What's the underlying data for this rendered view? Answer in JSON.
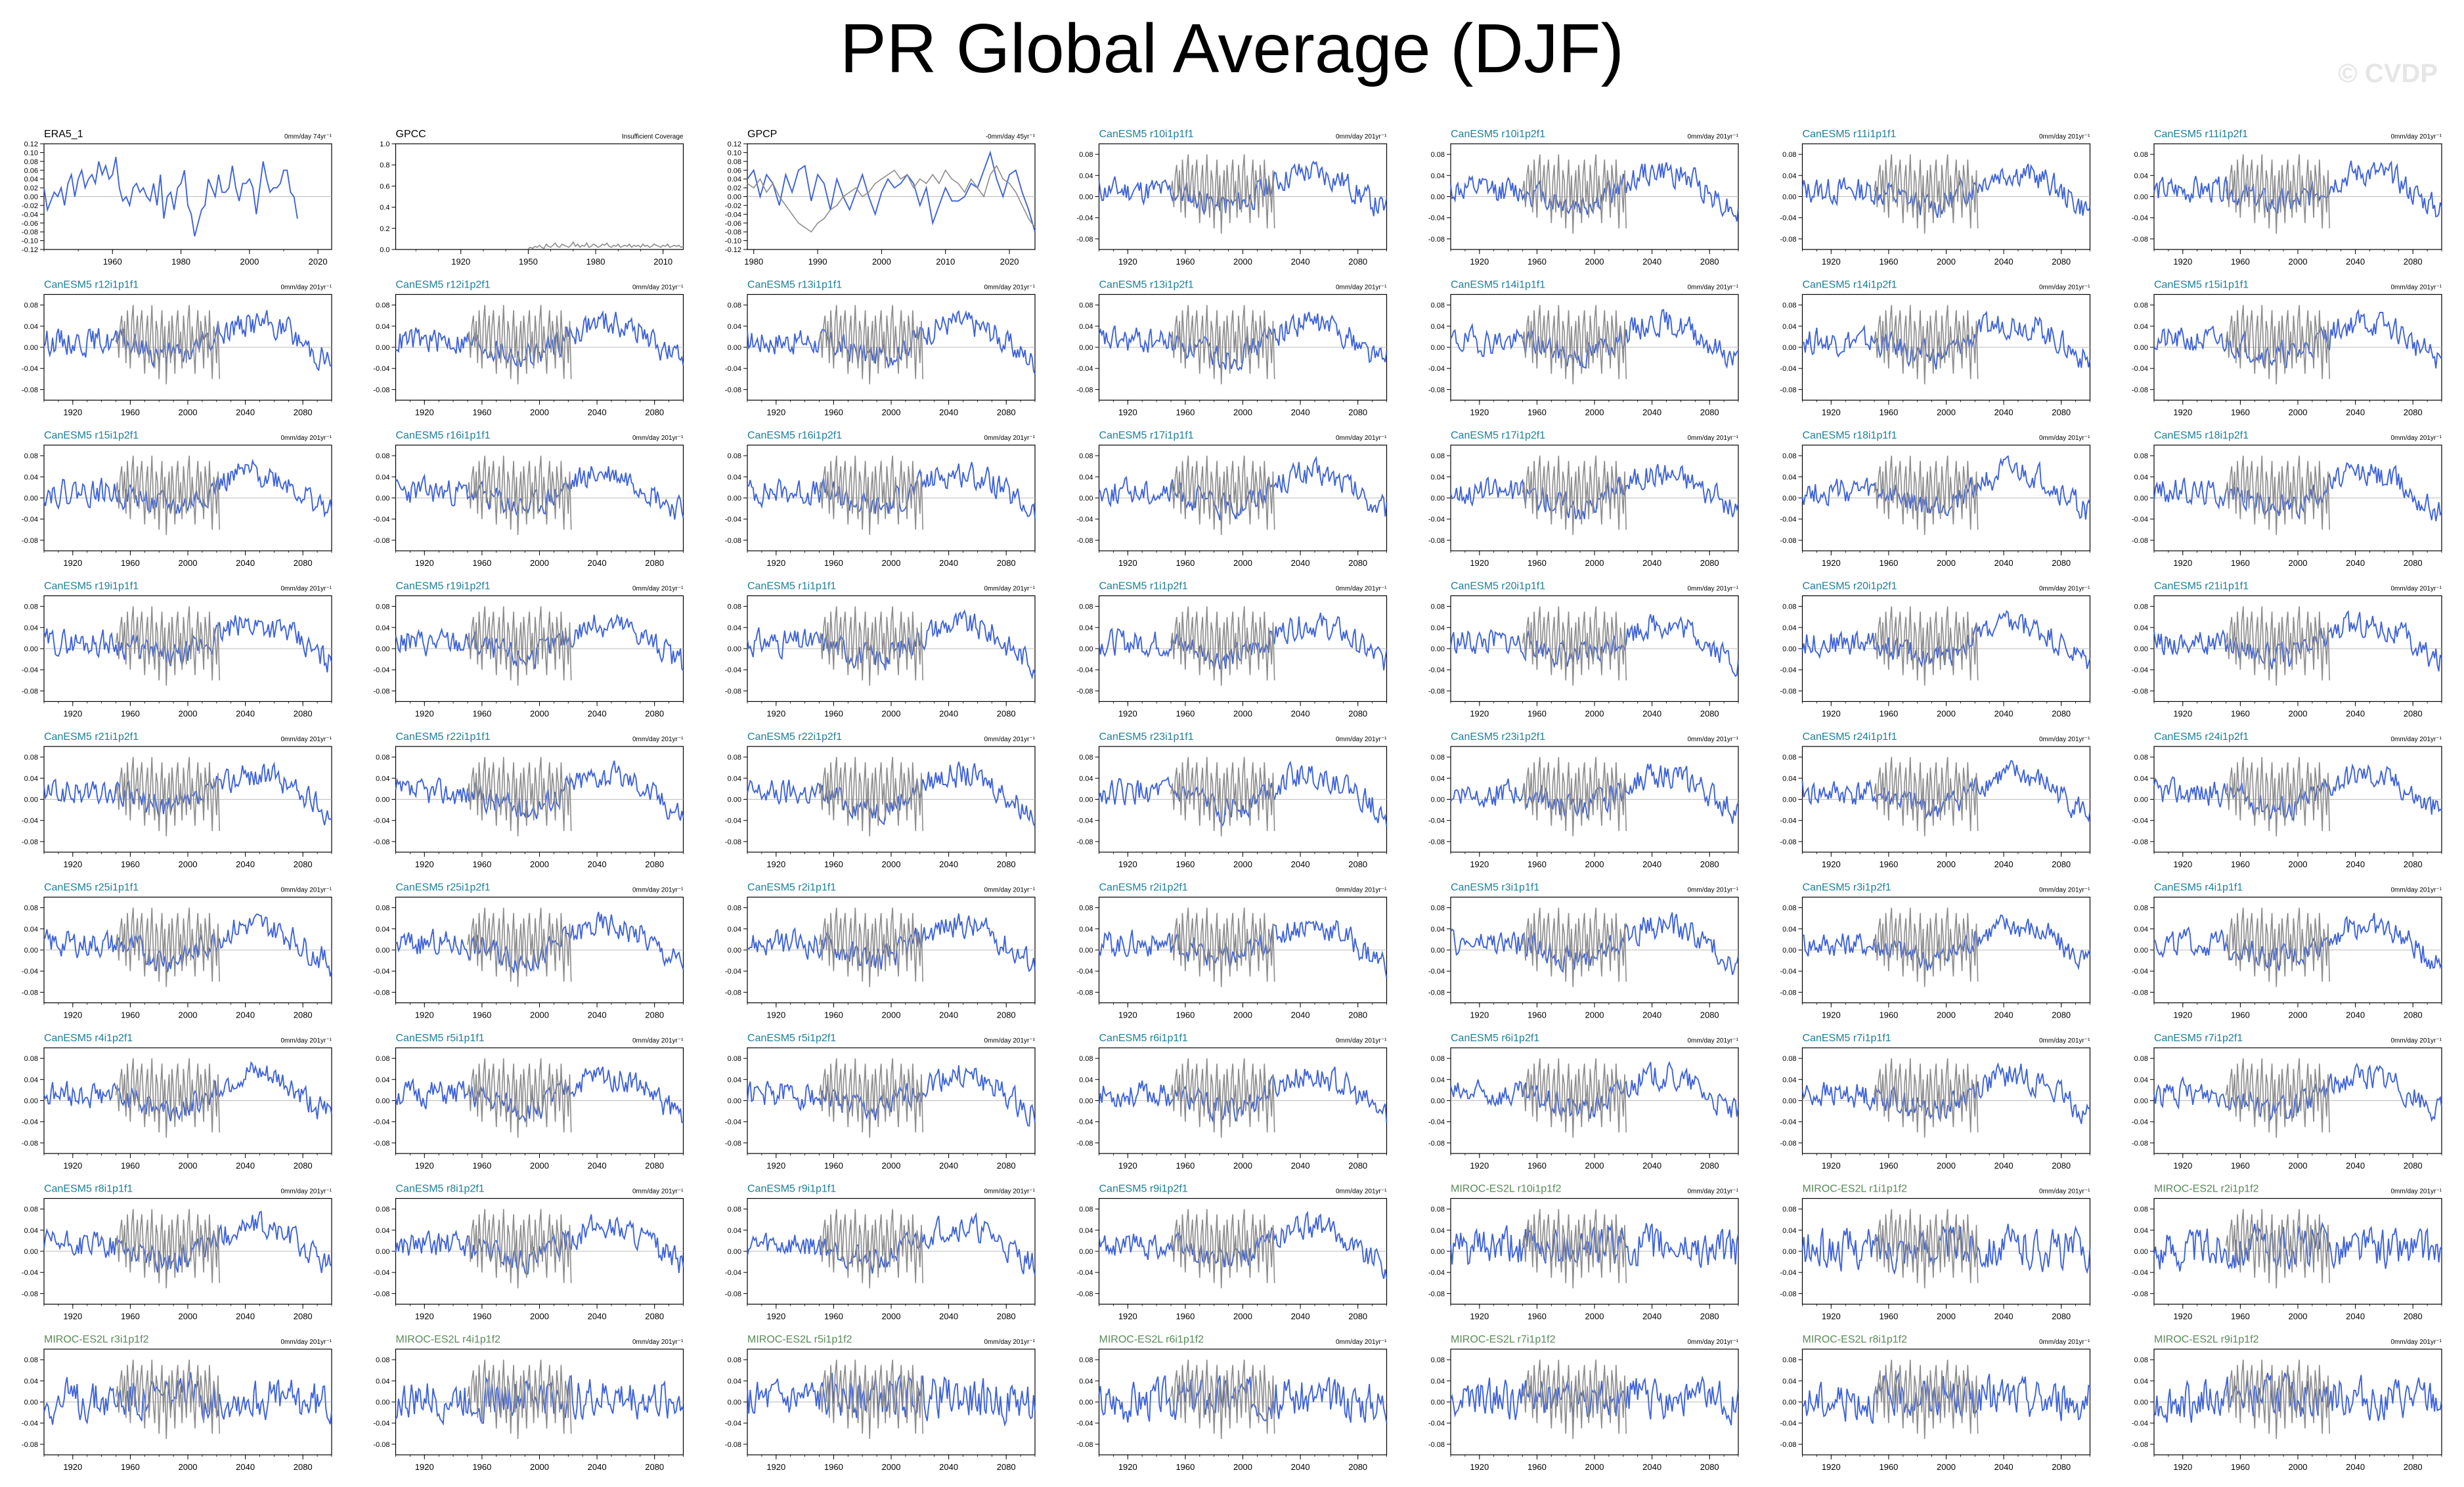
{
  "title": "PR Global Average (DJF)",
  "watermark": "© CVDP",
  "colors": {
    "observation_line": "#3f63d8",
    "reference_line": "#8c8c8c",
    "canesm_title": "#1e7f9a",
    "miroc_title": "#5a8a5a",
    "obs_title": "#000000",
    "zero_line": "#bbbbbb"
  },
  "chart_data": [
    {
      "type": "line",
      "title": "ERA5_1",
      "title_color": "obs",
      "trend": "0mm/day 74yr⁻¹",
      "x": {
        "min": 1940,
        "max": 2024,
        "ticks": [
          1960,
          1980,
          2000,
          2020
        ]
      },
      "ylim": [
        -0.12,
        0.12
      ],
      "yticks": [
        "0.12",
        "0.10",
        "0.08",
        "0.06",
        "0.04",
        "0.02",
        "0.00",
        "-0.02",
        "-0.04",
        "-0.06",
        "-0.08",
        "-0.10",
        "-0.12"
      ],
      "series": [
        {
          "style": "obs",
          "start": 1940,
          "values": [
            0.02,
            -0.03,
            -0.01,
            0.01,
            0.0,
            0.02,
            -0.02,
            0.03,
            0.05,
            0.0,
            0.04,
            0.06,
            0.02,
            0.04,
            0.05,
            0.03,
            0.08,
            0.05,
            0.07,
            0.04,
            0.05,
            0.09,
            0.02,
            -0.01,
            0.0,
            -0.02,
            0.02,
            0.03,
            0.01,
            0.02,
            0.0,
            -0.01,
            0.03,
            -0.02,
            0.05,
            -0.05,
            0.0,
            0.01,
            -0.03,
            0.02,
            0.03,
            0.06,
            -0.02,
            -0.04,
            -0.09,
            -0.06,
            -0.03,
            -0.02,
            0.04,
            0.02,
            0.0,
            0.05,
            0.01,
            0.01,
            0.02,
            0.07,
            0.02,
            -0.01,
            0.03,
            0.03,
            0.04,
            0.02,
            -0.04,
            0.02,
            0.08,
            0.04,
            0.01,
            0.02,
            0.02,
            0.03,
            0.06,
            0.06,
            0.01,
            0.0,
            -0.05
          ]
        }
      ]
    },
    {
      "type": "line",
      "title": "GPCC",
      "title_color": "obs",
      "trend": "Insufficient Coverage",
      "x": {
        "min": 1891,
        "max": 2019,
        "ticks": [
          1920,
          1950,
          1980,
          2010
        ]
      },
      "ylim": [
        0.0,
        1.0
      ],
      "yticks": [
        "1.0",
        "0.8",
        "0.6",
        "0.4",
        "0.2",
        "0.0"
      ],
      "series": [
        {
          "style": "ref",
          "start": 1950,
          "values": [
            0.01,
            0.02,
            0.01,
            0.03,
            0.02,
            0.04,
            0.02,
            0.01,
            0.05,
            0.03,
            0.02,
            0.04,
            0.06,
            0.03,
            0.02,
            0.05,
            0.04,
            0.03,
            0.02,
            0.04,
            0.07,
            0.03,
            0.05,
            0.02,
            0.04,
            0.03,
            0.06,
            0.02,
            0.03,
            0.05,
            0.04,
            0.02,
            0.03,
            0.05,
            0.04,
            0.06,
            0.03,
            0.02,
            0.04,
            0.03,
            0.05,
            0.02,
            0.03,
            0.04,
            0.03,
            0.05,
            0.02,
            0.04,
            0.03,
            0.04,
            0.02,
            0.05,
            0.03,
            0.04,
            0.02,
            0.03,
            0.05,
            0.04,
            0.03,
            0.02,
            0.04,
            0.03,
            0.05,
            0.02,
            0.03,
            0.04,
            0.03,
            0.04,
            0.02,
            0.03
          ]
        }
      ]
    },
    {
      "type": "line",
      "title": "GPCP",
      "title_color": "obs",
      "trend": "-0mm/day 45yr⁻¹",
      "x": {
        "min": 1979,
        "max": 2024,
        "ticks": [
          1980,
          1990,
          2000,
          2010,
          2020
        ]
      },
      "ylim": [
        -0.12,
        0.12
      ],
      "yticks": [
        "0.12",
        "0.10",
        "0.08",
        "0.06",
        "0.04",
        "0.02",
        "0.00",
        "-0.02",
        "-0.04",
        "-0.06",
        "-0.08",
        "-0.10",
        "-0.12"
      ],
      "series": [
        {
          "style": "obs",
          "start": 1979,
          "values": [
            0.04,
            0.06,
            0.0,
            0.05,
            0.03,
            -0.02,
            0.05,
            0.01,
            0.06,
            0.07,
            -0.01,
            0.05,
            0.03,
            -0.03,
            0.04,
            0.0,
            -0.03,
            0.01,
            0.05,
            0.0,
            -0.04,
            0.01,
            0.04,
            0.02,
            0.03,
            0.05,
            0.03,
            -0.02,
            0.02,
            -0.06,
            -0.02,
            0.02,
            -0.01,
            -0.01,
            0.0,
            0.03,
            0.02,
            0.06,
            0.1,
            0.04,
            0.0,
            0.05,
            0.06,
            0.01,
            -0.03,
            -0.08
          ]
        },
        {
          "style": "ref",
          "start": 1979,
          "values": [
            0.03,
            0.02,
            0.04,
            0.01,
            0.03,
            0.0,
            -0.02,
            -0.04,
            -0.06,
            -0.07,
            -0.08,
            -0.06,
            -0.05,
            -0.03,
            -0.02,
            0.0,
            0.01,
            0.02,
            0.0,
            0.01,
            0.03,
            0.04,
            0.05,
            0.06,
            0.04,
            0.05,
            0.02,
            0.04,
            0.03,
            0.05,
            0.03,
            0.06,
            0.04,
            0.03,
            0.01,
            0.04,
            0.02,
            0.0,
            0.05,
            0.07,
            0.04,
            0.03,
            0.01,
            -0.02,
            -0.05,
            -0.07
          ]
        }
      ]
    },
    {
      "type": "line",
      "title": "CanESM5 r10i1p1f1",
      "title_color": "canesm",
      "trend": "0mm/day 201yr⁻¹",
      "seed": 11
    },
    {
      "type": "line",
      "title": "CanESM5 r10i1p2f1",
      "title_color": "canesm",
      "trend": "0mm/day 201yr⁻¹",
      "seed": 12
    },
    {
      "type": "line",
      "title": "CanESM5 r11i1p1f1",
      "title_color": "canesm",
      "trend": "0mm/day 201yr⁻¹",
      "seed": 13
    },
    {
      "type": "line",
      "title": "CanESM5 r11i1p2f1",
      "title_color": "canesm",
      "trend": "0mm/day 201yr⁻¹",
      "seed": 14
    },
    {
      "type": "line",
      "title": "CanESM5 r12i1p1f1",
      "title_color": "canesm",
      "trend": "0mm/day 201yr⁻¹",
      "seed": 15
    },
    {
      "type": "line",
      "title": "CanESM5 r12i1p2f1",
      "title_color": "canesm",
      "trend": "0mm/day 201yr⁻¹",
      "seed": 16
    },
    {
      "type": "line",
      "title": "CanESM5 r13i1p1f1",
      "title_color": "canesm",
      "trend": "0mm/day 201yr⁻¹",
      "seed": 17
    },
    {
      "type": "line",
      "title": "CanESM5 r13i1p2f1",
      "title_color": "canesm",
      "trend": "0mm/day 201yr⁻¹",
      "seed": 18
    },
    {
      "type": "line",
      "title": "CanESM5 r14i1p1f1",
      "title_color": "canesm",
      "trend": "0mm/day 201yr⁻¹",
      "seed": 19
    },
    {
      "type": "line",
      "title": "CanESM5 r14i1p2f1",
      "title_color": "canesm",
      "trend": "0mm/day 201yr⁻¹",
      "seed": 20
    },
    {
      "type": "line",
      "title": "CanESM5 r15i1p1f1",
      "title_color": "canesm",
      "trend": "0mm/day 201yr⁻¹",
      "seed": 21
    },
    {
      "type": "line",
      "title": "CanESM5 r15i1p2f1",
      "title_color": "canesm",
      "trend": "0mm/day 201yr⁻¹",
      "seed": 22
    },
    {
      "type": "line",
      "title": "CanESM5 r16i1p1f1",
      "title_color": "canesm",
      "trend": "0mm/day 201yr⁻¹",
      "seed": 23
    },
    {
      "type": "line",
      "title": "CanESM5 r16i1p2f1",
      "title_color": "canesm",
      "trend": "0mm/day 201yr⁻¹",
      "seed": 24
    },
    {
      "type": "line",
      "title": "CanESM5 r17i1p1f1",
      "title_color": "canesm",
      "trend": "0mm/day 201yr⁻¹",
      "seed": 25
    },
    {
      "type": "line",
      "title": "CanESM5 r17i1p2f1",
      "title_color": "canesm",
      "trend": "0mm/day 201yr⁻¹",
      "seed": 26
    },
    {
      "type": "line",
      "title": "CanESM5 r18i1p1f1",
      "title_color": "canesm",
      "trend": "0mm/day 201yr⁻¹",
      "seed": 27
    },
    {
      "type": "line",
      "title": "CanESM5 r18i1p2f1",
      "title_color": "canesm",
      "trend": "0mm/day 201yr⁻¹",
      "seed": 28
    },
    {
      "type": "line",
      "title": "CanESM5 r19i1p1f1",
      "title_color": "canesm",
      "trend": "0mm/day 201yr⁻¹",
      "seed": 29
    },
    {
      "type": "line",
      "title": "CanESM5 r19i1p2f1",
      "title_color": "canesm",
      "trend": "0mm/day 201yr⁻¹",
      "seed": 30
    },
    {
      "type": "line",
      "title": "CanESM5 r1i1p1f1",
      "title_color": "canesm",
      "trend": "0mm/day 201yr⁻¹",
      "seed": 31
    },
    {
      "type": "line",
      "title": "CanESM5 r1i1p2f1",
      "title_color": "canesm",
      "trend": "0mm/day 201yr⁻¹",
      "seed": 32
    },
    {
      "type": "line",
      "title": "CanESM5 r20i1p1f1",
      "title_color": "canesm",
      "trend": "0mm/day 201yr⁻¹",
      "seed": 33
    },
    {
      "type": "line",
      "title": "CanESM5 r20i1p2f1",
      "title_color": "canesm",
      "trend": "0mm/day 201yr⁻¹",
      "seed": 34
    },
    {
      "type": "line",
      "title": "CanESM5 r21i1p1f1",
      "title_color": "canesm",
      "trend": "0mm/day 201yr⁻¹",
      "seed": 35
    },
    {
      "type": "line",
      "title": "CanESM5 r21i1p2f1",
      "title_color": "canesm",
      "trend": "0mm/day 201yr⁻¹",
      "seed": 36
    },
    {
      "type": "line",
      "title": "CanESM5 r22i1p1f1",
      "title_color": "canesm",
      "trend": "0mm/day 201yr⁻¹",
      "seed": 37
    },
    {
      "type": "line",
      "title": "CanESM5 r22i1p2f1",
      "title_color": "canesm",
      "trend": "0mm/day 201yr⁻¹",
      "seed": 38
    },
    {
      "type": "line",
      "title": "CanESM5 r23i1p1f1",
      "title_color": "canesm",
      "trend": "0mm/day 201yr⁻¹",
      "seed": 39
    },
    {
      "type": "line",
      "title": "CanESM5 r23i1p2f1",
      "title_color": "canesm",
      "trend": "0mm/day 201yr⁻¹",
      "seed": 40
    },
    {
      "type": "line",
      "title": "CanESM5 r24i1p1f1",
      "title_color": "canesm",
      "trend": "0mm/day 201yr⁻¹",
      "seed": 41
    },
    {
      "type": "line",
      "title": "CanESM5 r24i1p2f1",
      "title_color": "canesm",
      "trend": "0mm/day 201yr⁻¹",
      "seed": 42
    },
    {
      "type": "line",
      "title": "CanESM5 r25i1p1f1",
      "title_color": "canesm",
      "trend": "0mm/day 201yr⁻¹",
      "seed": 43
    },
    {
      "type": "line",
      "title": "CanESM5 r25i1p2f1",
      "title_color": "canesm",
      "trend": "0mm/day 201yr⁻¹",
      "seed": 44
    },
    {
      "type": "line",
      "title": "CanESM5 r2i1p1f1",
      "title_color": "canesm",
      "trend": "0mm/day 201yr⁻¹",
      "seed": 45
    },
    {
      "type": "line",
      "title": "CanESM5 r2i1p2f1",
      "title_color": "canesm",
      "trend": "0mm/day 201yr⁻¹",
      "seed": 46
    },
    {
      "type": "line",
      "title": "CanESM5 r3i1p1f1",
      "title_color": "canesm",
      "trend": "0mm/day 201yr⁻¹",
      "seed": 47
    },
    {
      "type": "line",
      "title": "CanESM5 r3i1p2f1",
      "title_color": "canesm",
      "trend": "0mm/day 201yr⁻¹",
      "seed": 48
    },
    {
      "type": "line",
      "title": "CanESM5 r4i1p1f1",
      "title_color": "canesm",
      "trend": "0mm/day 201yr⁻¹",
      "seed": 49
    },
    {
      "type": "line",
      "title": "CanESM5 r4i1p2f1",
      "title_color": "canesm",
      "trend": "0mm/day 201yr⁻¹",
      "seed": 50
    },
    {
      "type": "line",
      "title": "CanESM5 r5i1p1f1",
      "title_color": "canesm",
      "trend": "0mm/day 201yr⁻¹",
      "seed": 51
    },
    {
      "type": "line",
      "title": "CanESM5 r5i1p2f1",
      "title_color": "canesm",
      "trend": "0mm/day 201yr⁻¹",
      "seed": 52
    },
    {
      "type": "line",
      "title": "CanESM5 r6i1p1f1",
      "title_color": "canesm",
      "trend": "0mm/day 201yr⁻¹",
      "seed": 53
    },
    {
      "type": "line",
      "title": "CanESM5 r6i1p2f1",
      "title_color": "canesm",
      "trend": "0mm/day 201yr⁻¹",
      "seed": 54
    },
    {
      "type": "line",
      "title": "CanESM5 r7i1p1f1",
      "title_color": "canesm",
      "trend": "0mm/day 201yr⁻¹",
      "seed": 55
    },
    {
      "type": "line",
      "title": "CanESM5 r7i1p2f1",
      "title_color": "canesm",
      "trend": "0mm/day 201yr⁻¹",
      "seed": 56
    },
    {
      "type": "line",
      "title": "CanESM5 r8i1p1f1",
      "title_color": "canesm",
      "trend": "0mm/day 201yr⁻¹",
      "seed": 57
    },
    {
      "type": "line",
      "title": "CanESM5 r8i1p2f1",
      "title_color": "canesm",
      "trend": "0mm/day 201yr⁻¹",
      "seed": 58
    },
    {
      "type": "line",
      "title": "CanESM5 r9i1p1f1",
      "title_color": "canesm",
      "trend": "0mm/day 201yr⁻¹",
      "seed": 59
    },
    {
      "type": "line",
      "title": "CanESM5 r9i1p2f1",
      "title_color": "canesm",
      "trend": "0mm/day 201yr⁻¹",
      "seed": 60
    },
    {
      "type": "line",
      "title": "MIROC-ES2L r10i1p1f2",
      "title_color": "miroc",
      "trend": "0mm/day 201yr⁻¹",
      "seed": 61,
      "model": "miroc"
    },
    {
      "type": "line",
      "title": "MIROC-ES2L r1i1p1f2",
      "title_color": "miroc",
      "trend": "0mm/day 201yr⁻¹",
      "seed": 62,
      "model": "miroc"
    },
    {
      "type": "line",
      "title": "MIROC-ES2L r2i1p1f2",
      "title_color": "miroc",
      "trend": "0mm/day 201yr⁻¹",
      "seed": 63,
      "model": "miroc"
    },
    {
      "type": "line",
      "title": "MIROC-ES2L r3i1p1f2",
      "title_color": "miroc",
      "trend": "0mm/day 201yr⁻¹",
      "seed": 64,
      "model": "miroc"
    },
    {
      "type": "line",
      "title": "MIROC-ES2L r4i1p1f2",
      "title_color": "miroc",
      "trend": "0mm/day 201yr⁻¹",
      "seed": 65,
      "model": "miroc"
    },
    {
      "type": "line",
      "title": "MIROC-ES2L r5i1p1f2",
      "title_color": "miroc",
      "trend": "0mm/day 201yr⁻¹",
      "seed": 66,
      "model": "miroc"
    },
    {
      "type": "line",
      "title": "MIROC-ES2L r6i1p1f2",
      "title_color": "miroc",
      "trend": "0mm/day 201yr⁻¹",
      "seed": 67,
      "model": "miroc"
    },
    {
      "type": "line",
      "title": "MIROC-ES2L r7i1p1f2",
      "title_color": "miroc",
      "trend": "0mm/day 201yr⁻¹",
      "seed": 68,
      "model": "miroc"
    },
    {
      "type": "line",
      "title": "MIROC-ES2L r8i1p1f2",
      "title_color": "miroc",
      "trend": "0mm/day 201yr⁻¹",
      "seed": 69,
      "model": "miroc"
    },
    {
      "type": "line",
      "title": "MIROC-ES2L r9i1p1f2",
      "title_color": "miroc",
      "trend": "0mm/day 201yr⁻¹",
      "seed": 70,
      "model": "miroc"
    }
  ],
  "model_panel_defaults": {
    "x": {
      "min": 1900,
      "max": 2100,
      "ticks": [
        1920,
        1960,
        2000,
        2040,
        2080
      ]
    },
    "ylim": [
      -0.1,
      0.1
    ],
    "yticks": [
      "0.08",
      "0.04",
      "0.00",
      "-0.04",
      "-0.08"
    ],
    "ref_start": 1950,
    "ref_values": [
      0.01,
      0.03,
      -0.02,
      0.04,
      0.06,
      0.0,
      0.05,
      -0.03,
      0.07,
      0.02,
      -0.04,
      0.05,
      0.08,
      -0.01,
      0.03,
      0.06,
      -0.02,
      0.04,
      0.07,
      0.01,
      -0.05,
      0.03,
      0.06,
      -0.03,
      0.02,
      0.08,
      0.0,
      -0.04,
      0.05,
      0.03,
      -0.06,
      0.02,
      0.07,
      -0.02,
      0.04,
      -0.07,
      0.01,
      0.05,
      -0.03,
      0.06,
      0.02,
      -0.05,
      0.04,
      0.07,
      -0.01,
      0.03,
      -0.04,
      0.06,
      0.02,
      -0.03,
      0.05,
      0.08,
      -0.02,
      0.04,
      0.0,
      -0.05,
      0.03,
      0.07,
      -0.01,
      0.05,
      0.02,
      -0.04,
      0.06,
      0.03,
      -0.02,
      0.07,
      0.01,
      -0.06,
      0.04,
      0.02,
      -0.03,
      0.05,
      -0.06
    ]
  }
}
